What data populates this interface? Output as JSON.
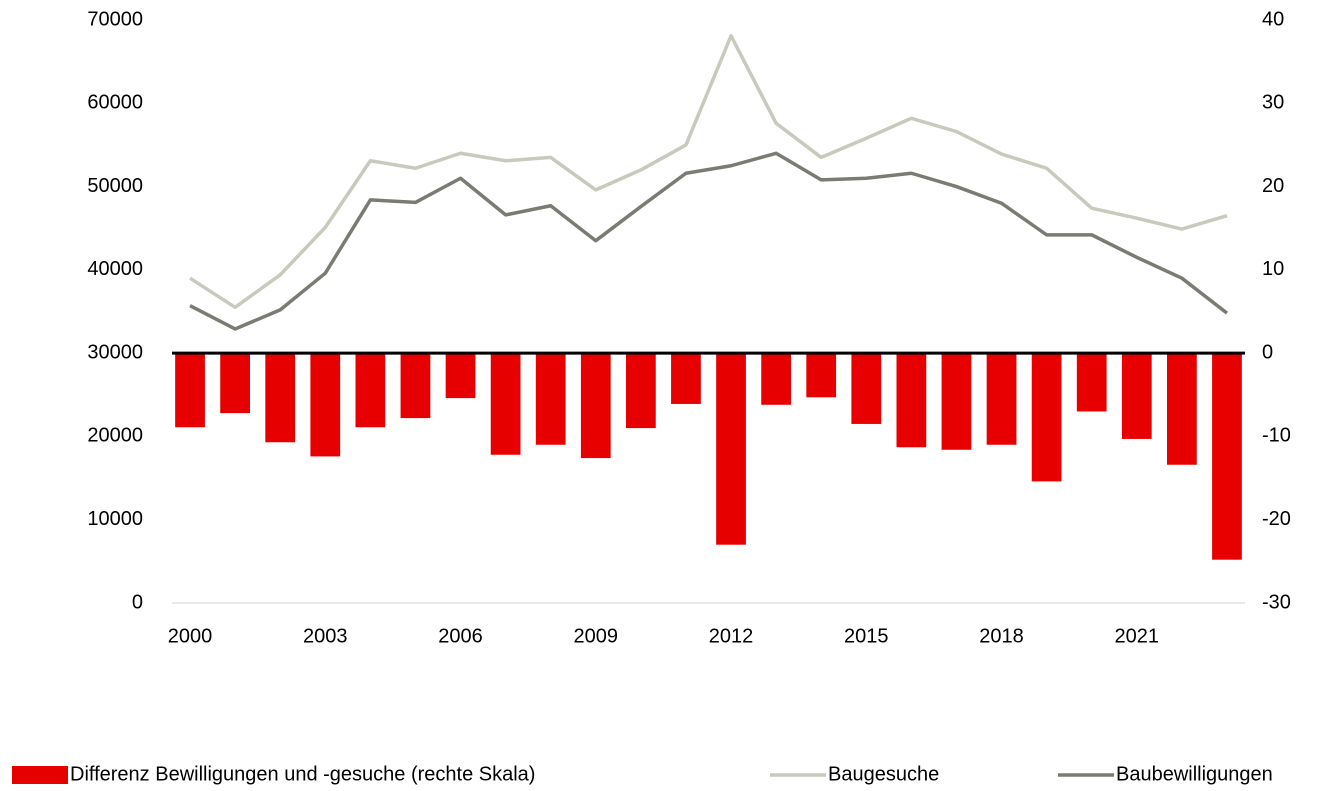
{
  "chart_data": {
    "type": "bar-line",
    "x": [
      2000,
      2001,
      2002,
      2003,
      2004,
      2005,
      2006,
      2007,
      2008,
      2009,
      2010,
      2011,
      2012,
      2013,
      2014,
      2015,
      2016,
      2017,
      2018,
      2019,
      2020,
      2021,
      2022,
      2023
    ],
    "xlim": [
      1999.6,
      2023.4
    ],
    "xticks": [
      2000,
      2003,
      2006,
      2009,
      2012,
      2015,
      2018,
      2021
    ],
    "ylim": [
      0,
      70000
    ],
    "yticks": [
      0,
      10000,
      20000,
      30000,
      40000,
      50000,
      60000,
      70000
    ],
    "y2lim": [
      -30,
      40
    ],
    "y2ticks": [
      -30,
      -20,
      -10,
      0,
      10,
      20,
      30,
      40
    ],
    "legend": "bottom",
    "series": [
      {
        "name": "Differenz Bewilligungen und -gesuche (rechte Skala)",
        "type": "bar",
        "axis": "y2",
        "color": "#e60000",
        "values": [
          -8.9,
          -7.2,
          -10.7,
          -12.4,
          -8.9,
          -7.8,
          -5.4,
          -12.2,
          -11.0,
          -12.6,
          -9.0,
          -6.1,
          -23.0,
          -6.2,
          -5.3,
          -8.5,
          -11.3,
          -11.6,
          -11.0,
          -15.4,
          -7.0,
          -10.3,
          -13.4,
          -24.8
        ]
      },
      {
        "name": "Baugesuche",
        "type": "line",
        "color": "#c9c9bd",
        "values": [
          39000,
          35500,
          39400,
          45100,
          53100,
          52200,
          54000,
          53100,
          53500,
          49600,
          52000,
          55000,
          68100,
          57600,
          53500,
          55800,
          58200,
          56600,
          53900,
          52200,
          47400,
          46200,
          44900,
          46500
        ]
      },
      {
        "name": "Baubewilligungen",
        "type": "line",
        "color": "#7b7b73",
        "values": [
          35700,
          32900,
          35200,
          39600,
          48400,
          48100,
          51000,
          46600,
          47700,
          43500,
          47600,
          51600,
          52500,
          54000,
          50800,
          51000,
          51600,
          50000,
          48000,
          44200,
          44200,
          41500,
          39000,
          34800
        ]
      }
    ]
  }
}
